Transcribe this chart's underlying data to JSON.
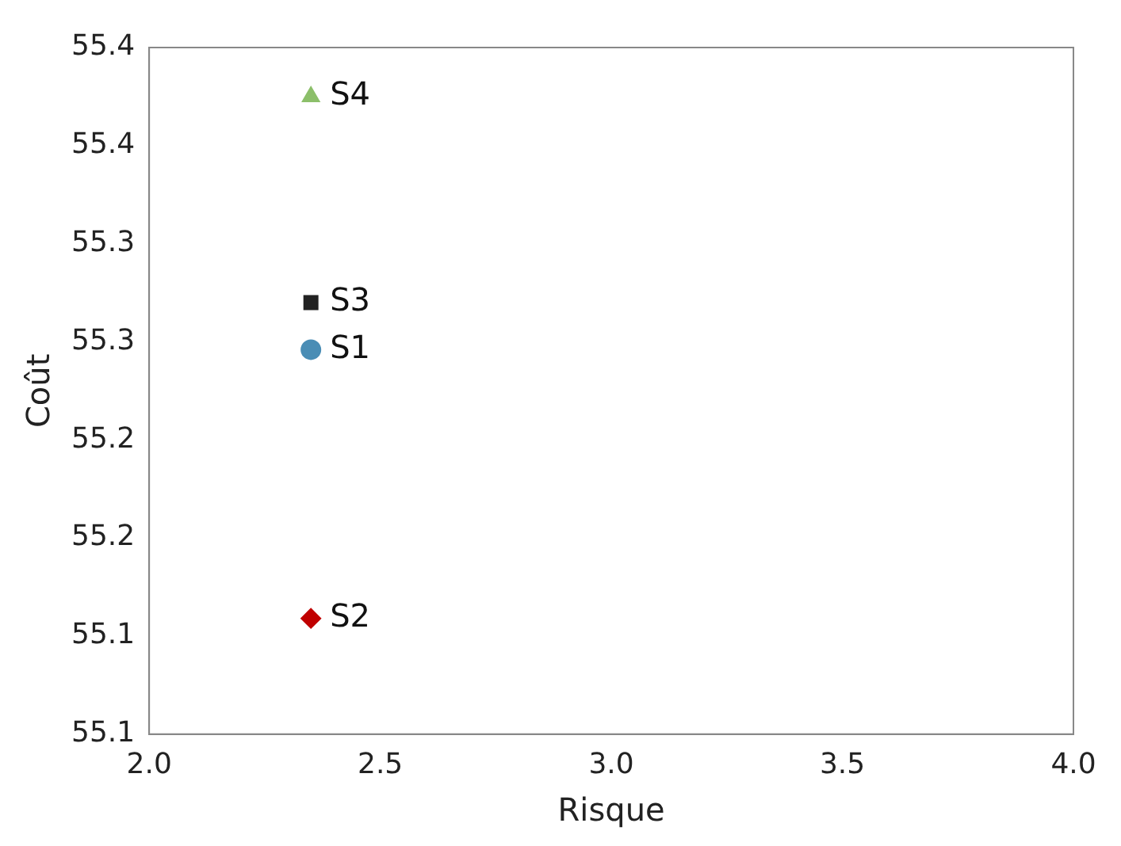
{
  "chart_data": {
    "type": "scatter",
    "xlabel": "Risque",
    "ylabel": "Coût",
    "legend": false,
    "grid": false,
    "xlim": [
      2.0,
      4.0
    ],
    "xticks": [
      {
        "value": 2.0,
        "label": "2.0"
      },
      {
        "value": 2.5,
        "label": "2.5"
      },
      {
        "value": 3.0,
        "label": "3.0"
      },
      {
        "value": 3.5,
        "label": "3.5"
      },
      {
        "value": 4.0,
        "label": "4.0"
      }
    ],
    "ylim": [
      55.05,
      55.4
    ],
    "yticks": [
      {
        "value": 55.05,
        "label": "55.1"
      },
      {
        "value": 55.1,
        "label": "55.1"
      },
      {
        "value": 55.15,
        "label": "55.2"
      },
      {
        "value": 55.2,
        "label": "55.2"
      },
      {
        "value": 55.25,
        "label": "55.3"
      },
      {
        "value": 55.3,
        "label": "55.3"
      },
      {
        "value": 55.35,
        "label": "55.4"
      },
      {
        "value": 55.4,
        "label": "55.4"
      }
    ],
    "x": [
      2.35
    ],
    "series": [
      {
        "name": "S1",
        "color": "#4a8db5",
        "marker": "circle",
        "values": [
          55.246
        ]
      },
      {
        "name": "S2",
        "color": "#c00000",
        "marker": "diamond",
        "values": [
          55.109
        ]
      },
      {
        "name": "S3",
        "color": "#222222",
        "marker": "square",
        "values": [
          55.27
        ]
      },
      {
        "name": "S4",
        "color": "#8cbf6a",
        "marker": "triangle",
        "values": [
          55.375
        ]
      }
    ]
  }
}
